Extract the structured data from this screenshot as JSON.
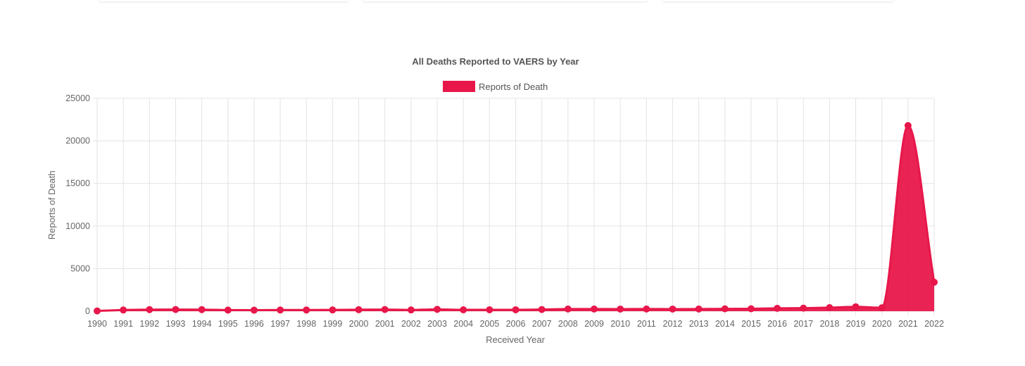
{
  "colors": {
    "series": "#E8174A",
    "grid": "#E3E3E3",
    "text": "#555555"
  },
  "chart_data": {
    "type": "area",
    "title": "All Deaths Reported to VAERS by Year",
    "xlabel": "Received Year",
    "ylabel": "Reports of Death",
    "legend": {
      "position": "top",
      "entries": [
        "Reports of Death"
      ]
    },
    "grid": true,
    "ylim": [
      0,
      25000
    ],
    "yticks": [
      "0",
      "5000",
      "10000",
      "15000",
      "20000",
      "25000"
    ],
    "categories": [
      "1990",
      "1991",
      "1992",
      "1993",
      "1994",
      "1995",
      "1996",
      "1997",
      "1998",
      "1999",
      "2000",
      "2001",
      "2002",
      "2003",
      "2004",
      "2005",
      "2006",
      "2007",
      "2008",
      "2009",
      "2010",
      "2011",
      "2012",
      "2013",
      "2014",
      "2015",
      "2016",
      "2017",
      "2018",
      "2019",
      "2020",
      "2021",
      "2022"
    ],
    "series": [
      {
        "name": "Reports of Death",
        "values": [
          30,
          140,
          190,
          200,
          190,
          130,
          120,
          140,
          140,
          150,
          180,
          200,
          150,
          220,
          160,
          170,
          170,
          200,
          260,
          260,
          250,
          260,
          250,
          260,
          280,
          290,
          340,
          360,
          420,
          520,
          400,
          21800,
          3400
        ]
      }
    ]
  }
}
